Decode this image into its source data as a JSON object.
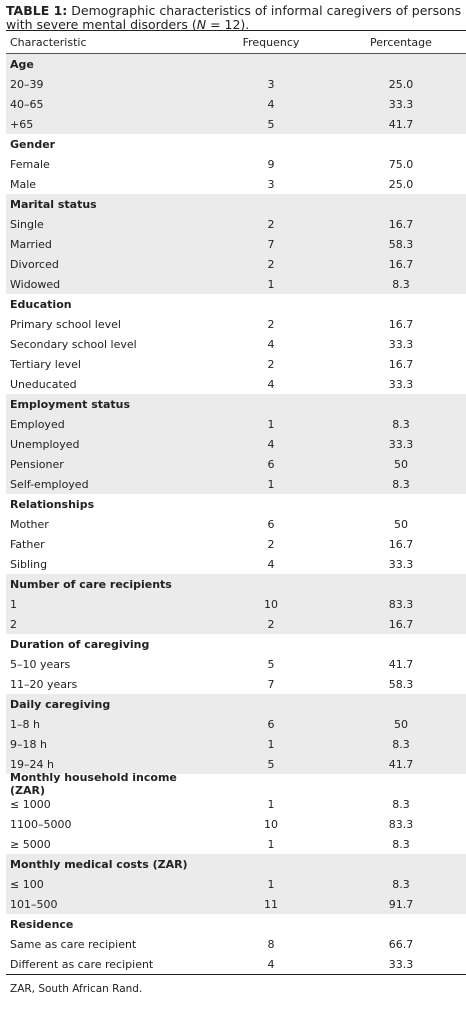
{
  "caption": {
    "label": "TABLE 1:",
    "text_before_n": " Demographic characteristics of informal caregivers of persons with severe mental disorders (",
    "n_symbol": "N",
    "text_after_n": " = 12)."
  },
  "headers": {
    "characteristic": "Characteristic",
    "frequency": "Frequency",
    "percentage": "Percentage"
  },
  "groups": [
    {
      "title": "Age",
      "shade": true,
      "rows": [
        {
          "label": "20–39",
          "freq": "3",
          "pct": "25.0"
        },
        {
          "label": "40–65",
          "freq": "4",
          "pct": "33.3"
        },
        {
          "label": "+65",
          "freq": "5",
          "pct": "41.7"
        }
      ]
    },
    {
      "title": "Gender",
      "shade": false,
      "rows": [
        {
          "label": "Female",
          "freq": "9",
          "pct": "75.0"
        },
        {
          "label": "Male",
          "freq": "3",
          "pct": "25.0"
        }
      ]
    },
    {
      "title": "Marital status",
      "shade": true,
      "rows": [
        {
          "label": "Single",
          "freq": "2",
          "pct": "16.7"
        },
        {
          "label": "Married",
          "freq": "7",
          "pct": "58.3"
        },
        {
          "label": "Divorced",
          "freq": "2",
          "pct": "16.7"
        },
        {
          "label": "Widowed",
          "freq": "1",
          "pct": "8.3"
        }
      ]
    },
    {
      "title": "Education",
      "shade": false,
      "rows": [
        {
          "label": "Primary school level",
          "freq": "2",
          "pct": "16.7"
        },
        {
          "label": "Secondary school level",
          "freq": "4",
          "pct": "33.3"
        },
        {
          "label": "Tertiary level",
          "freq": "2",
          "pct": "16.7"
        },
        {
          "label": "Uneducated",
          "freq": "4",
          "pct": "33.3"
        }
      ]
    },
    {
      "title": "Employment status",
      "shade": true,
      "rows": [
        {
          "label": "Employed",
          "freq": "1",
          "pct": "8.3"
        },
        {
          "label": "Unemployed",
          "freq": "4",
          "pct": "33.3"
        },
        {
          "label": "Pensioner",
          "freq": "6",
          "pct": "50"
        },
        {
          "label": "Self-employed",
          "freq": "1",
          "pct": "8.3"
        }
      ]
    },
    {
      "title": "Relationships",
      "shade": false,
      "rows": [
        {
          "label": "Mother",
          "freq": "6",
          "pct": "50"
        },
        {
          "label": "Father",
          "freq": "2",
          "pct": "16.7"
        },
        {
          "label": "Sibling",
          "freq": "4",
          "pct": "33.3"
        }
      ]
    },
    {
      "title": "Number of care recipients",
      "shade": true,
      "rows": [
        {
          "label": "1",
          "freq": "10",
          "pct": "83.3"
        },
        {
          "label": "2",
          "freq": "2",
          "pct": "16.7"
        }
      ]
    },
    {
      "title": "Duration of caregiving",
      "shade": false,
      "rows": [
        {
          "label": "5–10 years",
          "freq": "5",
          "pct": "41.7"
        },
        {
          "label": "11–20 years",
          "freq": "7",
          "pct": "58.3"
        }
      ]
    },
    {
      "title": "Daily caregiving",
      "shade": true,
      "rows": [
        {
          "label": "1–8 h",
          "freq": "6",
          "pct": "50"
        },
        {
          "label": "9–18 h",
          "freq": "1",
          "pct": "8.3"
        },
        {
          "label": "19–24 h",
          "freq": "5",
          "pct": "41.7"
        }
      ]
    },
    {
      "title": "Monthly household income (ZAR)",
      "shade": false,
      "rows": [
        {
          "label": "≤ 1000",
          "freq": "1",
          "pct": "8.3"
        },
        {
          "label": "1100–5000",
          "freq": "10",
          "pct": "83.3"
        },
        {
          "label": "≥ 5000",
          "freq": "1",
          "pct": "8.3"
        }
      ]
    },
    {
      "title": "Monthly medical costs (ZAR)",
      "shade": true,
      "rows": [
        {
          "label": "≤ 100",
          "freq": "1",
          "pct": "8.3"
        },
        {
          "label": "101–500",
          "freq": "11",
          "pct": "91.7"
        }
      ]
    },
    {
      "title": "Residence",
      "shade": false,
      "rows": [
        {
          "label": "Same as care recipient",
          "freq": "8",
          "pct": "66.7"
        },
        {
          "label": "Different as care recipient",
          "freq": "4",
          "pct": "33.3"
        }
      ]
    }
  ],
  "footnote": "ZAR, South African Rand."
}
